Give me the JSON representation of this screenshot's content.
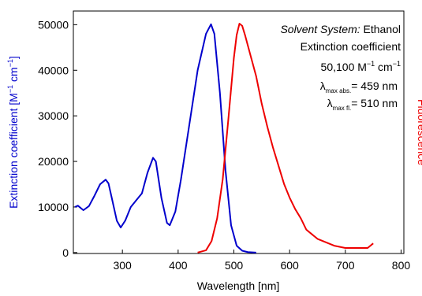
{
  "chart_data": {
    "type": "line",
    "xlabel": "Wavelength [nm]",
    "ylabel": {
      "text": "Extinction coefficient [M",
      "sup1": "−1",
      "mid": " cm",
      "sup2": "−1",
      "end": "]"
    },
    "y2label": "Fluorescence",
    "xlim": [
      212,
      805
    ],
    "ylim": [
      -200,
      53000
    ],
    "y2lim": [
      -0.004,
      1.055
    ],
    "xticks": [
      300,
      400,
      500,
      600,
      700,
      800
    ],
    "yticks": [
      0,
      10000,
      20000,
      30000,
      40000,
      50000
    ],
    "annotations": {
      "solvent_label": "Solvent System:",
      "solvent": " Ethanol",
      "coef_label": "Extinction coefficient",
      "coef": "50,100 M",
      "coef_sup1": "−1",
      "coef_mid": " cm",
      "coef_sup2": "−1",
      "abs_sym": "λ",
      "abs_sub": "max abs.",
      "abs_val": "= 459 nm",
      "fl_sym": "λ",
      "fl_sub": "max fl.",
      "fl_val": "= 510 nm"
    },
    "series": [
      {
        "color": "#0000cc",
        "axis": "y",
        "x": [
          215,
          220,
          230,
          240,
          250,
          260,
          270,
          275,
          280,
          290,
          297,
          305,
          315,
          325,
          335,
          345,
          355,
          360,
          370,
          380,
          385,
          395,
          405,
          420,
          435,
          450,
          459,
          465,
          475,
          485,
          495,
          505,
          515,
          525,
          540
        ],
        "values": [
          10000,
          10300,
          9300,
          10200,
          12500,
          15000,
          16000,
          15200,
          12500,
          7000,
          5500,
          7000,
          10000,
          11500,
          13000,
          17500,
          20800,
          20000,
          12000,
          6500,
          6000,
          9000,
          16000,
          28000,
          40000,
          48000,
          50100,
          48000,
          35000,
          18000,
          6000,
          1500,
          400,
          100,
          0
        ]
      },
      {
        "color": "#ee0000",
        "axis": "y2",
        "x": [
          435,
          450,
          460,
          470,
          480,
          490,
          500,
          505,
          510,
          515,
          520,
          530,
          540,
          550,
          560,
          570,
          580,
          590,
          600,
          610,
          620,
          630,
          640,
          650,
          660,
          680,
          700,
          720,
          740,
          750
        ],
        "values": [
          0,
          0.01,
          0.05,
          0.15,
          0.32,
          0.58,
          0.85,
          0.95,
          1.0,
          0.99,
          0.95,
          0.86,
          0.77,
          0.65,
          0.55,
          0.46,
          0.38,
          0.3,
          0.24,
          0.19,
          0.15,
          0.1,
          0.08,
          0.06,
          0.05,
          0.03,
          0.02,
          0.02,
          0.02,
          0.04
        ]
      }
    ]
  }
}
